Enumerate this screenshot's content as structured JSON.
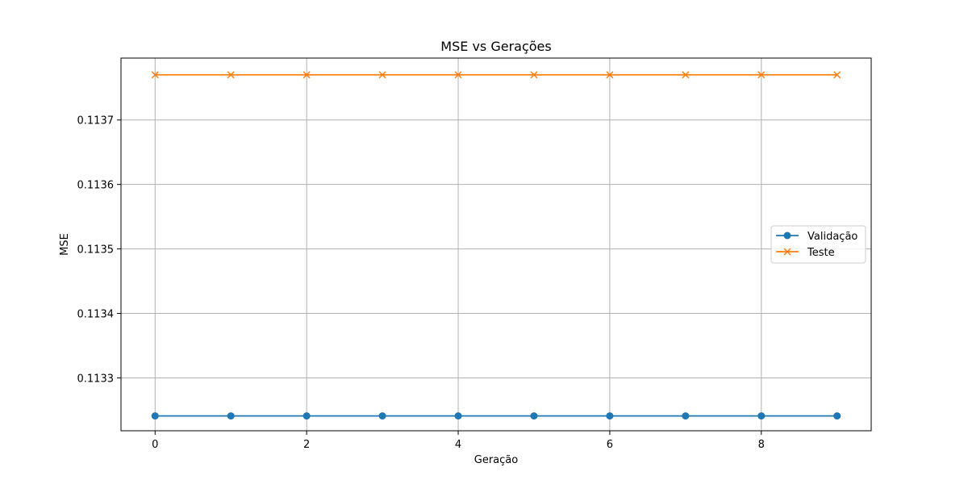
{
  "chart_data": {
    "type": "line",
    "title": "MSE vs Gerações",
    "xlabel": "Geração",
    "ylabel": "MSE",
    "x": [
      0,
      1,
      2,
      3,
      4,
      5,
      6,
      7,
      8,
      9
    ],
    "xlim": [
      -0.45,
      9.45
    ],
    "ylim": [
      0.113218,
      0.113796
    ],
    "x_ticks": [
      0,
      2,
      4,
      6,
      8
    ],
    "y_ticks": [
      0.1133,
      0.1134,
      0.1135,
      0.1136,
      0.1137
    ],
    "x_tick_labels": [
      "0",
      "2",
      "4",
      "6",
      "8"
    ],
    "y_tick_labels": [
      "0.1133",
      "0.1134",
      "0.1135",
      "0.1136",
      "0.1137"
    ],
    "grid": true,
    "legend_position": "center-right",
    "series": [
      {
        "name": "Validação",
        "color": "#1f77b4",
        "marker": "circle",
        "values": [
          0.113241,
          0.113241,
          0.113241,
          0.113241,
          0.113241,
          0.113241,
          0.113241,
          0.113241,
          0.113241,
          0.113241
        ]
      },
      {
        "name": "Teste",
        "color": "#ff7f0e",
        "marker": "x",
        "values": [
          0.11377,
          0.11377,
          0.11377,
          0.11377,
          0.11377,
          0.11377,
          0.11377,
          0.11377,
          0.11377,
          0.11377
        ]
      }
    ]
  }
}
